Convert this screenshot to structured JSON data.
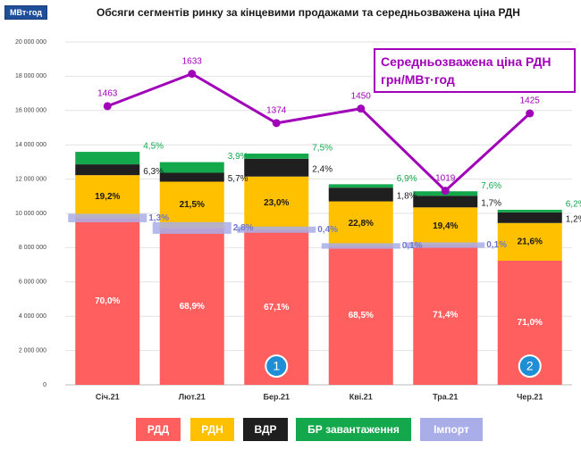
{
  "chart_data": {
    "type": "stacked-bar-line",
    "title": "Обсяги сегментів ринку за кінцевими продажами та середньозважена ціна РДН",
    "unit_label": "МВт·год",
    "categories": [
      "Січ.21",
      "Лют.21",
      "Бер.21",
      "Кві.21",
      "Тра.21",
      "Чер.21"
    ],
    "ylim": [
      0,
      20000000
    ],
    "yticks": [
      0,
      {
        "value": 2000000,
        "label": "2 000 000"
      },
      {
        "value": 4000000,
        "label": "4 000 000"
      },
      {
        "value": 6000000,
        "label": "6 000 000"
      },
      {
        "value": 8000000,
        "label": "8 000 000"
      },
      {
        "value": 10000000,
        "label": "10 000 000"
      },
      {
        "value": 12000000,
        "label": "12 000 000"
      },
      {
        "value": 14000000,
        "label": "14 000 000"
      },
      {
        "value": 16000000,
        "label": "16 000 000"
      },
      {
        "value": 18000000,
        "label": "18 000 000"
      },
      {
        "value": 20000000,
        "label": "20 000 000"
      }
    ],
    "y2lim": [
      0,
      1800
    ],
    "grid": true,
    "series": [
      {
        "name": "РДД",
        "color": "#ff5f5f",
        "label_color": "#ffffff",
        "label_position": "inside",
        "stacked": true,
        "values": [
          9730000,
          9150000,
          9050000,
          8100000,
          8150000,
          7240000
        ],
        "share_labels": [
          "70,0%",
          "68,9%",
          "67,1%",
          "68,5%",
          "71,4%",
          "71,0%"
        ]
      },
      {
        "name": "РДН",
        "color": "#ffc000",
        "label_color": "#1a1a1a",
        "label_position": "inside",
        "stacked": true,
        "values": [
          2500000,
          2700000,
          3100000,
          2600000,
          2200000,
          2200000
        ],
        "share_labels": [
          "19,2%",
          "21,5%",
          "23,0%",
          "22,8%",
          "19,4%",
          "21,6%"
        ]
      },
      {
        "name": "ВДР",
        "color": "#1f1f1f",
        "label_color": "#1a1a1a",
        "label_position": "right",
        "stacked": true,
        "values": [
          630000,
          520000,
          1040000,
          800000,
          680000,
          620000
        ],
        "share_labels": [
          "6,3%",
          "5,7%",
          "2,4%",
          "1,8%",
          "1,7%",
          "1,2%"
        ]
      },
      {
        "name": "БР завантаження",
        "color": "#14a84c",
        "label_color": "#14a84c",
        "label_position": "right",
        "stacked": true,
        "values": [
          730000,
          620000,
          300000,
          200000,
          260000,
          150000
        ],
        "share_labels": [
          "4,5%",
          "3,9%",
          "7,5%",
          "6,9%",
          "7,6%",
          "6,2%"
        ]
      },
      {
        "name": "Імпорт",
        "color": "#a9aee8",
        "label_color": "#6f78d0",
        "label_position": "right",
        "stacked": false,
        "values": [
          180000,
          370000,
          50000,
          12000,
          12000,
          null
        ],
        "share_labels": [
          "1,3%",
          "2,8%",
          "0,4%",
          "0,1%",
          "0,1%",
          null
        ]
      },
      {
        "name": "Середньозважена ціна РДН грн/МВт·год",
        "color": "#a000b8",
        "axis": "y2",
        "type": "line",
        "values": [
          1463,
          1633,
          1374,
          1450,
          1019,
          1425
        ]
      }
    ],
    "annotations": [
      {
        "text": "1",
        "category": 2
      },
      {
        "text": "2",
        "category": 5
      }
    ]
  }
}
